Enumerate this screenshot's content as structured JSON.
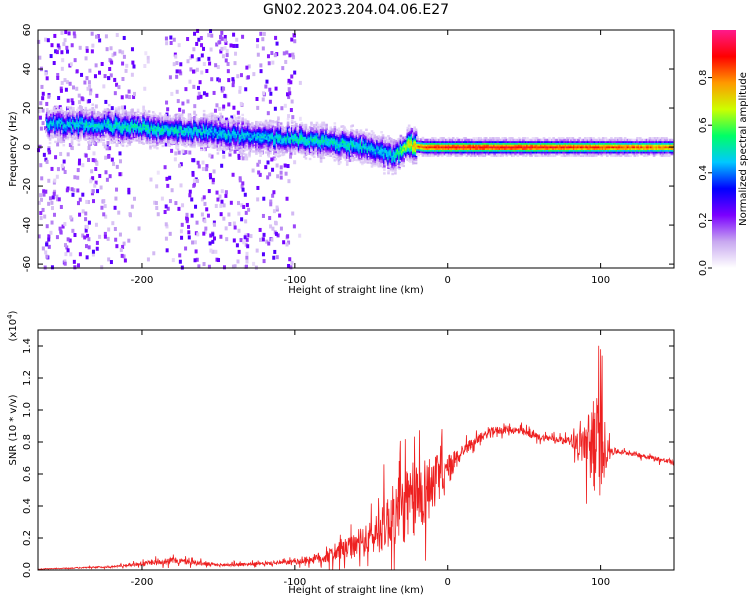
{
  "title": "GN02.2023.204.04.06.E27",
  "chart_data": [
    {
      "type": "heatmap",
      "xlabel": "Height of straight line (km)",
      "ylabel": "Frequency (Hz)",
      "xlim": [
        -268,
        148
      ],
      "ylim": [
        -62,
        60
      ],
      "x_ticks": [
        -200,
        -100,
        0,
        100
      ],
      "x_tick_labels": [
        "-200",
        "-100",
        "0",
        "100"
      ],
      "y_ticks": [
        -60,
        -40,
        -20,
        0,
        20,
        40,
        60
      ],
      "y_tick_labels": [
        "-60",
        "-40",
        "-20",
        "0",
        "20",
        "40",
        "60"
      ],
      "colorbar": {
        "label": "Normalized spectral amplitude",
        "range": [
          0.0,
          1.0
        ],
        "ticks": [
          0.0,
          0.2,
          0.4,
          0.6,
          0.8
        ],
        "tick_labels": [
          "0.0",
          "0.2",
          "0.4",
          "0.6",
          "0.8"
        ],
        "colormap": [
          "#ffffff",
          "#c8a8f0",
          "#7b00ff",
          "#0000ff",
          "#00c8ff",
          "#00ff66",
          "#ccff00",
          "#ff9900",
          "#ff0000",
          "#ff1a8c"
        ]
      },
      "ridge": {
        "x": [
          -260,
          -220,
          -180,
          -150,
          -120,
          -100,
          -80,
          -60,
          -45,
          -35,
          -25,
          -15,
          0,
          50,
          100,
          148
        ],
        "freq": [
          12,
          11,
          9,
          7,
          5,
          4,
          3,
          1,
          -2,
          -5,
          1,
          0,
          0,
          0,
          0,
          0
        ],
        "peak_amplitude": [
          0.45,
          0.5,
          0.5,
          0.45,
          0.45,
          0.5,
          0.5,
          0.5,
          0.45,
          0.5,
          0.7,
          0.85,
          0.9,
          0.9,
          0.85,
          0.8
        ]
      },
      "noise_bands_km": [
        [
          -268,
          -205
        ],
        [
          -185,
          -130
        ],
        [
          -125,
          -100
        ]
      ]
    },
    {
      "type": "line",
      "xlabel": "Height of straight line (km)",
      "ylabel": "SNR (10 * v/v)",
      "y_multiplier_label": "(x10",
      "y_multiplier_exp": "4",
      "xlim": [
        -268,
        148
      ],
      "ylim": [
        0,
        1.5
      ],
      "x_ticks": [
        -200,
        -100,
        0,
        100
      ],
      "x_tick_labels": [
        "-200",
        "-100",
        "0",
        "100"
      ],
      "y_ticks": [
        0.0,
        0.2,
        0.4,
        0.6,
        0.8,
        1.0,
        1.2,
        1.4
      ],
      "y_tick_labels": [
        "0.0",
        "0.2",
        "0.4",
        "0.6",
        "0.8",
        "1.0",
        "1.2",
        "1.4"
      ],
      "series": [
        {
          "color": "#ee2020",
          "envelope": {
            "x": [
              -268,
              -220,
              -180,
              -150,
              -120,
              -100,
              -80,
              -70,
              -60,
              -50,
              -40,
              -30,
              -20,
              -10,
              0,
              10,
              20,
              30,
              40,
              50,
              60,
              70,
              80,
              90,
              95,
              100,
              105,
              110,
              120,
              130,
              148
            ],
            "base": [
              0.005,
              0.02,
              0.06,
              0.03,
              0.04,
              0.05,
              0.08,
              0.12,
              0.15,
              0.2,
              0.3,
              0.38,
              0.45,
              0.55,
              0.62,
              0.75,
              0.82,
              0.87,
              0.88,
              0.86,
              0.83,
              0.82,
              0.81,
              0.78,
              0.78,
              0.78,
              0.75,
              0.74,
              0.73,
              0.71,
              0.67
            ],
            "spread": [
              0.003,
              0.01,
              0.04,
              0.02,
              0.02,
              0.03,
              0.08,
              0.12,
              0.15,
              0.22,
              0.35,
              0.45,
              0.5,
              0.35,
              0.2,
              0.08,
              0.05,
              0.05,
              0.05,
              0.05,
              0.04,
              0.04,
              0.04,
              0.3,
              0.6,
              0.65,
              0.1,
              0.03,
              0.03,
              0.03,
              0.03
            ]
          }
        }
      ]
    }
  ]
}
